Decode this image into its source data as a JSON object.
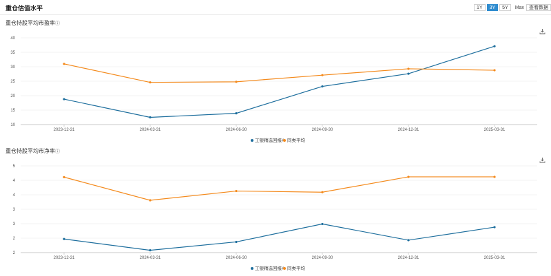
{
  "header": {
    "title": "重仓估值水平",
    "range_tabs": [
      "1Y",
      "3Y",
      "5Y",
      "Max"
    ],
    "active_tab": "3Y",
    "view_data_label": "查看数据"
  },
  "colors": {
    "fund": "#1d6e9d",
    "peer": "#f48a1c",
    "active_tab": "#2f8ccf",
    "grid": "#e8e8e8"
  },
  "icons": {
    "calendar": "calendar-icon",
    "download": "download-icon",
    "info": "info-icon"
  },
  "panels": [
    {
      "title": "重仓持股平均市盈率",
      "info_glyph": "ⓘ"
    },
    {
      "title": "重仓持股平均市净率",
      "info_glyph": "ⓘ"
    }
  ],
  "chart_data": [
    {
      "type": "line",
      "title": "重仓持股平均市盈率",
      "categories": [
        "2023-12-31",
        "2024-03-31",
        "2024-06-30",
        "2024-09-30",
        "2024-12-31",
        "2025-03-31"
      ],
      "y_ticks": [
        "10",
        "15",
        "20",
        "25",
        "30",
        "35",
        "40"
      ],
      "ylim": [
        10,
        40
      ],
      "grid": true,
      "legend_position": "bottom-center",
      "series": [
        {
          "name": "工银精选回报A",
          "color": "#1d6e9d",
          "values": [
            18.8,
            12.5,
            13.9,
            23.2,
            27.6,
            37.1
          ]
        },
        {
          "name": "同类平均",
          "color": "#f48a1c",
          "values": [
            31.0,
            24.6,
            24.8,
            27.1,
            29.3,
            28.8
          ]
        }
      ]
    },
    {
      "type": "line",
      "title": "重仓持股平均市净率",
      "categories": [
        "2023-12-31",
        "2024-03-31",
        "2024-06-30",
        "2024-09-30",
        "2024-12-31",
        "2025-03-31"
      ],
      "y_ticks": [
        "2",
        "2",
        "3",
        "3",
        "4",
        "4",
        "5"
      ],
      "ylim": [
        2.0,
        5.0
      ],
      "grid": true,
      "legend_position": "bottom-center",
      "series": [
        {
          "name": "工银精选回报A",
          "color": "#1d6e9d",
          "values": [
            2.47,
            2.08,
            2.37,
            2.99,
            2.43,
            2.88
          ]
        },
        {
          "name": "同类平均",
          "color": "#f48a1c",
          "values": [
            4.61,
            3.81,
            4.13,
            4.09,
            4.62,
            4.62
          ]
        }
      ]
    }
  ]
}
